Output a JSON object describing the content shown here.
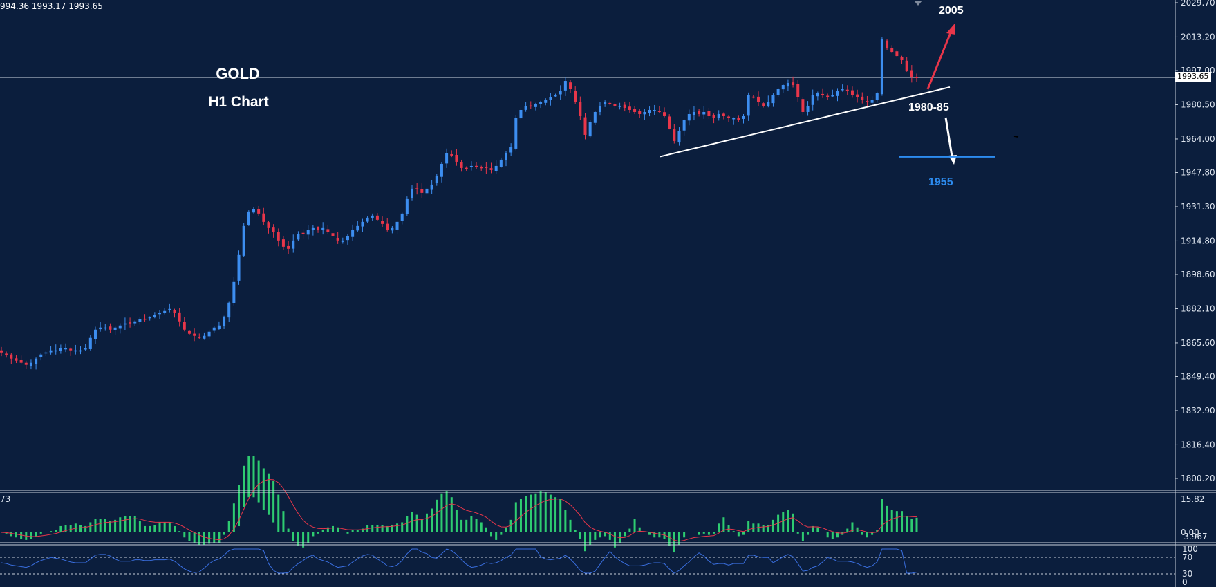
{
  "header": {
    "ohlc_text": "994.36 1993.17 1993.65"
  },
  "titles": {
    "symbol": "GOLD",
    "timeframe": "H1 Chart"
  },
  "annotations": {
    "target_up": "2005",
    "support_zone": "1980-85",
    "target_down": "1955"
  },
  "price_axis": {
    "labels": [
      "2029.70",
      "2013.20",
      "1997.00",
      "1980.50",
      "1964.00",
      "1947.80",
      "1931.30",
      "1914.80",
      "1898.60",
      "1882.10",
      "1865.60",
      "1849.40",
      "1832.90",
      "1816.40",
      "1800.20"
    ],
    "current_price": "1993.65"
  },
  "macd_axis": {
    "labels": [
      "15.82",
      "0.00",
      "-3.967"
    ],
    "left_label": "73"
  },
  "rsi_axis": {
    "labels": [
      "100",
      "70",
      "30",
      "0"
    ]
  },
  "colors": {
    "background": "#0b1e3d",
    "bull": "#3d8ef0",
    "bear": "#e8364a",
    "histogram": "#2ecc71",
    "signal": "#e8364a",
    "rsi": "#3a6fe0",
    "target_down": "#2d8cf0",
    "arrow_up": "#e8364a"
  },
  "chart_data": {
    "type": "candlestick",
    "instrument": "GOLD",
    "timeframe": "H1",
    "ylim": [
      1800.2,
      2029.7
    ],
    "close_path": [
      1861,
      1860,
      1858,
      1857,
      1856,
      1855,
      1856,
      1858,
      1860,
      1861,
      1862,
      1862,
      1863,
      1863,
      1862,
      1862,
      1862,
      1863,
      1868,
      1872,
      1873,
      1873,
      1872,
      1873,
      1874,
      1875,
      1875,
      1876,
      1877,
      1877,
      1878,
      1879,
      1880,
      1881,
      1882,
      1880,
      1876,
      1872,
      1870,
      1869,
      1868,
      1869,
      1871,
      1873,
      1874,
      1878,
      1885,
      1895,
      1908,
      1922,
      1929,
      1930,
      1928,
      1924,
      1921,
      1919,
      1915,
      1912,
      1911,
      1915,
      1918,
      1918,
      1920,
      1921,
      1920,
      1921,
      1919,
      1917,
      1915,
      1915,
      1917,
      1920,
      1922,
      1924,
      1926,
      1927,
      1925,
      1923,
      1920,
      1921,
      1924,
      1928,
      1935,
      1940,
      1940,
      1938,
      1940,
      1942,
      1946,
      1952,
      1957,
      1956,
      1953,
      1950,
      1950,
      1951,
      1951,
      1950,
      1950,
      1949,
      1951,
      1954,
      1957,
      1960,
      1974,
      1978,
      1980,
      1980,
      1981,
      1982,
      1983,
      1984,
      1985,
      1987,
      1992,
      1988,
      1982,
      1975,
      1966,
      1972,
      1977,
      1980,
      1982,
      1981,
      1980,
      1980,
      1979,
      1978,
      1977,
      1976,
      1977,
      1978,
      1978,
      1977,
      1975,
      1969,
      1963,
      1968,
      1973,
      1976,
      1977,
      1976,
      1977,
      1975,
      1974,
      1976,
      1975,
      1974,
      1974,
      1973,
      1975,
      1985,
      1984,
      1982,
      1980,
      1982,
      1985,
      1988,
      1990,
      1991,
      1990,
      1984,
      1977,
      1980,
      1985,
      1986,
      1985,
      1984,
      1985,
      1987,
      1988,
      1987,
      1985,
      1984,
      1983,
      1982,
      1983,
      1986,
      2012,
      2008,
      2006,
      2004,
      2002,
      1997,
      1994,
      1993.65
    ],
    "trendline": {
      "from": [
        1955.5,
        "start"
      ],
      "to": [
        1989,
        "end"
      ]
    },
    "target_up": 2005,
    "support_zone": "1980-85",
    "target_down": 1955,
    "current_price": 1993.65
  }
}
